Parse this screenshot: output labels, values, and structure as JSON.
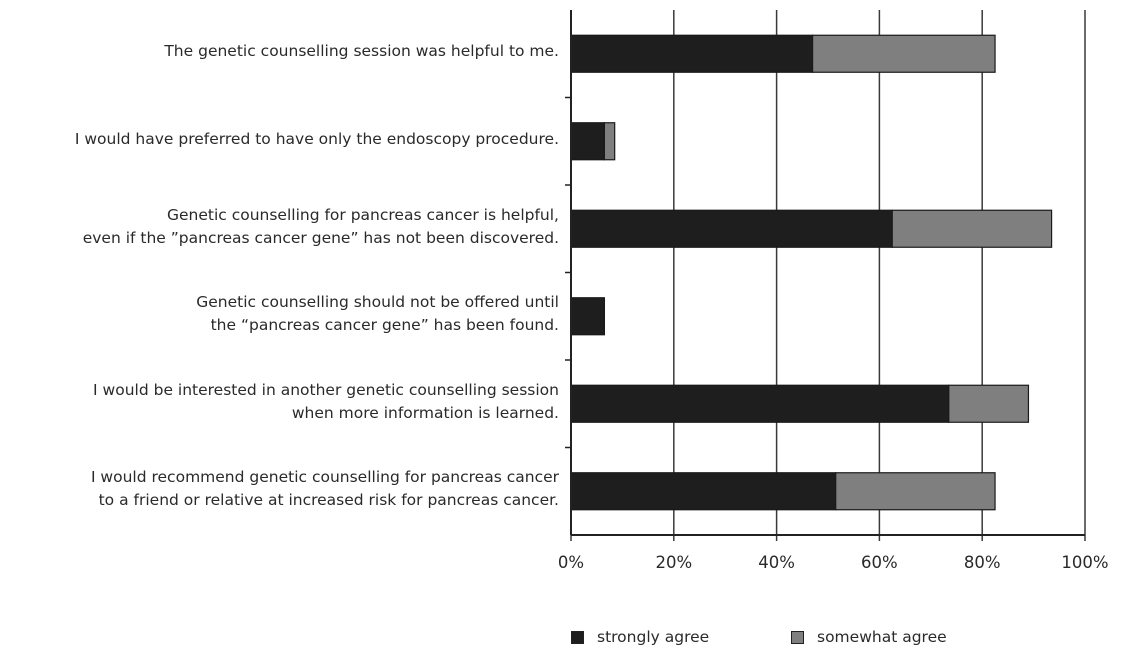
{
  "chart_data": {
    "type": "bar",
    "orientation": "horizontal",
    "stacked": true,
    "categories": [
      [
        "The genetic counselling session was helpful to me."
      ],
      [
        "I would have preferred to have only the endoscopy procedure."
      ],
      [
        "Genetic counselling for pancreas cancer is helpful,",
        "even if the ”pancreas cancer gene” has not been discovered."
      ],
      [
        "Genetic counselling should not be offered until",
        "the “pancreas cancer gene” has been found."
      ],
      [
        "I would be interested in another genetic counselling session",
        "when more information is learned."
      ],
      [
        "I would recommend genetic counselling for pancreas cancer",
        "to a friend or relative at increased risk for pancreas cancer."
      ]
    ],
    "series": [
      {
        "name": "strongly agree",
        "color": "#1e1e1e",
        "values": [
          47,
          6.5,
          62.5,
          6.5,
          73.5,
          51.5
        ]
      },
      {
        "name": "somewhat agree",
        "color": "#7f7f7f",
        "values": [
          35.5,
          2,
          31,
          0,
          15.5,
          31
        ]
      }
    ],
    "x_ticks": [
      "0%",
      "20%",
      "40%",
      "60%",
      "80%",
      "100%"
    ],
    "xlim": [
      0,
      100
    ],
    "grid": "vertical",
    "legend_position": "bottom"
  }
}
